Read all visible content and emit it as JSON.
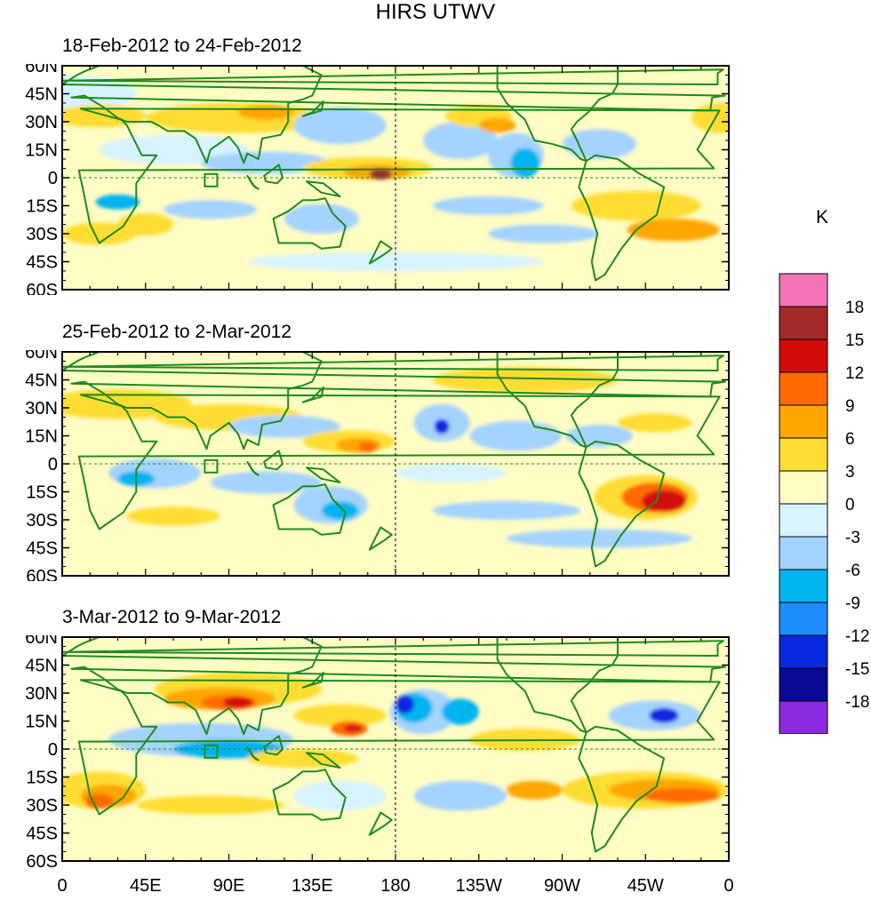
{
  "title": "HIRS UTWV",
  "unit": "K",
  "panels": [
    {
      "label": "18-Feb-2012 to 24-Feb-2012"
    },
    {
      "label": "25-Feb-2012 to 2-Mar-2012"
    },
    {
      "label": "3-Mar-2012 to 9-Mar-2012"
    }
  ],
  "lat_ticks": [
    "60N",
    "45N",
    "30N",
    "15N",
    "0",
    "15S",
    "30S",
    "45S",
    "60S"
  ],
  "lon_ticks": [
    "0",
    "45E",
    "90E",
    "135E",
    "180",
    "135W",
    "90W",
    "45W",
    "0"
  ],
  "colorbar": {
    "labels": [
      "18",
      "15",
      "12",
      "9",
      "6",
      "3",
      "0",
      "-3",
      "-6",
      "-9",
      "-12",
      "-15",
      "-18"
    ],
    "colors": [
      "#f574b8",
      "#a52a2a",
      "#d40a0a",
      "#ff6a00",
      "#ffa600",
      "#ffdd33",
      "#fffcc4",
      "#d6f3ff",
      "#a4d3ff",
      "#00b4f0",
      "#1e8cff",
      "#0a28e0",
      "#0a0a96",
      "#8a2be2"
    ]
  },
  "map_colors": {
    "coast": "#1f8a1f",
    "equator": "#1f8a1f",
    "background": "#fffcc4"
  }
}
